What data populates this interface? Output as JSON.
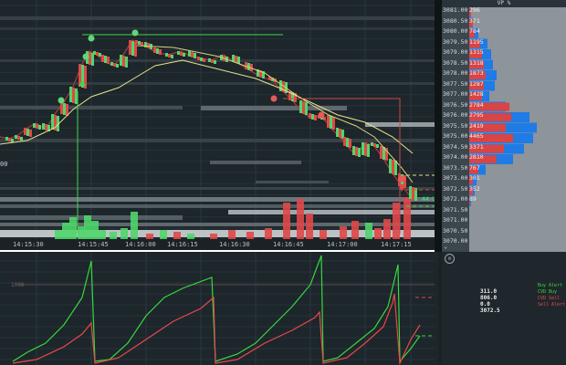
{
  "vp_header": "VP %",
  "time_labels": [
    "14:15:30",
    "14:15:45",
    "14:16:00",
    "14:16:15",
    "14:16:30",
    "14:16:45",
    "14:17:00",
    "14:17:15"
  ],
  "left_price_label": "00",
  "cvd_label": "1000",
  "last_price_badge": "44",
  "last_price_count": "(9)",
  "price_levels": [
    {
      "price": "3081.00",
      "vol": "296"
    },
    {
      "price": "3080.50",
      "vol": "371"
    },
    {
      "price": "3080.00",
      "vol": "784"
    },
    {
      "price": "3079.50",
      "vol": "1195"
    },
    {
      "price": "3079.00",
      "vol": "1315"
    },
    {
      "price": "3078.50",
      "vol": "1318"
    },
    {
      "price": "3078.00",
      "vol": "1873"
    },
    {
      "price": "3077.50",
      "vol": "1287"
    },
    {
      "price": "3077.00",
      "vol": "1428"
    },
    {
      "price": "3076.50",
      "vol": "2784"
    },
    {
      "price": "3076.00",
      "vol": "2795"
    },
    {
      "price": "3075.50",
      "vol": "2419"
    },
    {
      "price": "3075.00",
      "vol": "4465"
    },
    {
      "price": "3074.50",
      "vol": "3371"
    },
    {
      "price": "3074.00",
      "vol": "2810"
    },
    {
      "price": "3073.50",
      "vol": "767"
    },
    {
      "price": "3073.00",
      "vol": "301"
    },
    {
      "price": "3072.50",
      "vol": "352"
    },
    {
      "price": "3072.00",
      "vol": "89"
    },
    {
      "price": "3071.50",
      "vol": ""
    },
    {
      "price": "3071.00",
      "vol": ""
    },
    {
      "price": "3070.50",
      "vol": ""
    },
    {
      "price": "3070.00",
      "vol": ""
    }
  ],
  "stats": [
    "311.0",
    "806.0",
    "0.0",
    "3072.5"
  ],
  "legend": [
    {
      "label": "Buy Alert",
      "color": "#37d83e"
    },
    {
      "label": "CVD Buy",
      "color": "#37d83e"
    },
    {
      "label": "CVD Sell",
      "color": "#e8494a"
    },
    {
      "label": "Sell Alert",
      "color": "#e8494a"
    }
  ],
  "collapse_glyph": "⌄",
  "gear_glyph": "⚙",
  "colors": {
    "buy": "#4fd66a",
    "sell": "#e04848",
    "vwap": "#e8e38a",
    "ask_vp": "#1f7be6",
    "bid_vp": "#d94444"
  }
}
